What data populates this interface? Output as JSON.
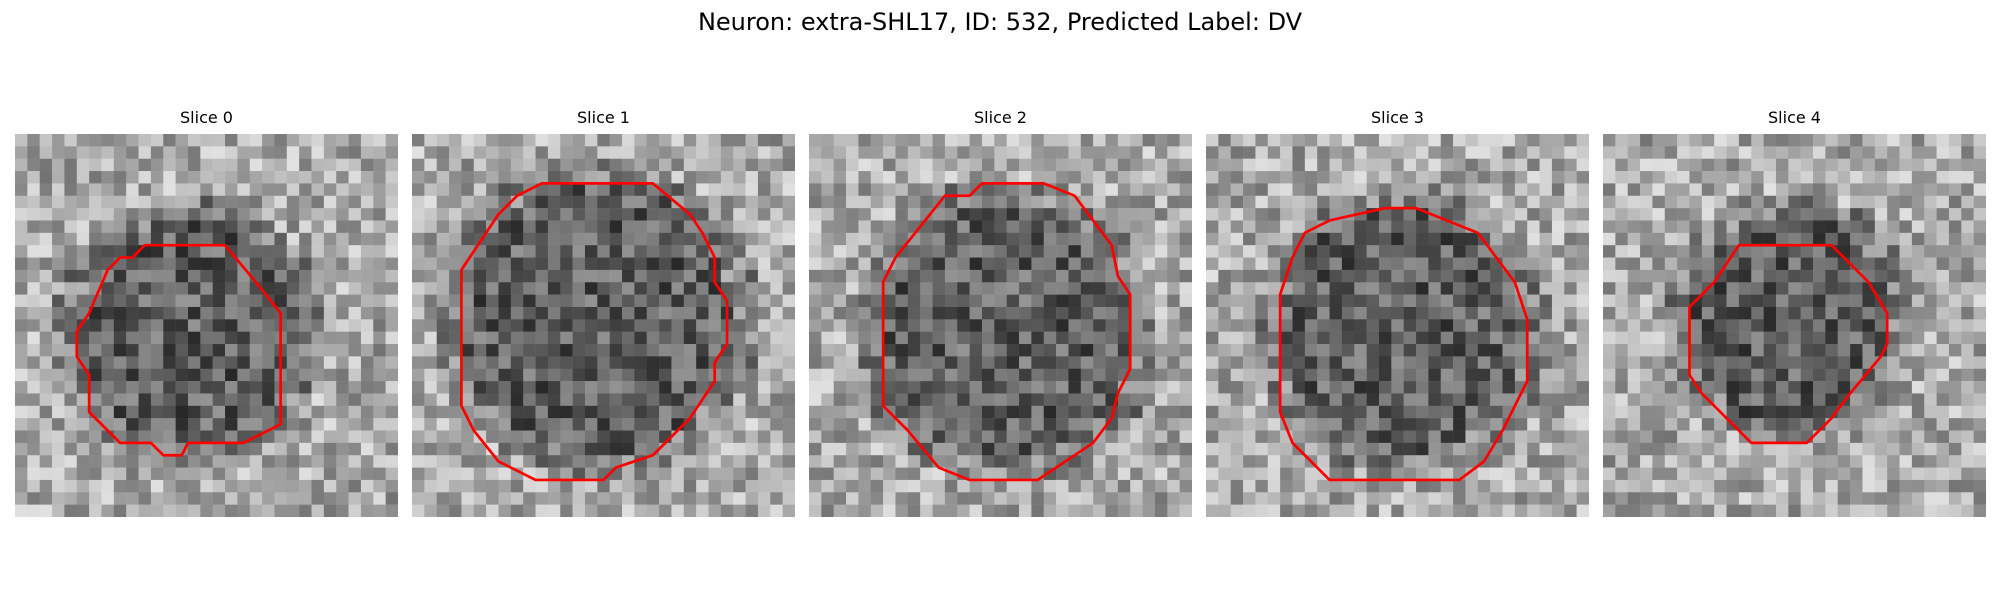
{
  "figure": {
    "title": "Neuron: extra-SHL17, ID: 532, Predicted Label: DV"
  },
  "panels": [
    {
      "title": "Slice 0"
    },
    {
      "title": "Slice 1"
    },
    {
      "title": "Slice 2"
    },
    {
      "title": "Slice 3"
    },
    {
      "title": "Slice 4"
    }
  ],
  "colors": {
    "contour": "#ff0000",
    "background": "#ffffff"
  }
}
